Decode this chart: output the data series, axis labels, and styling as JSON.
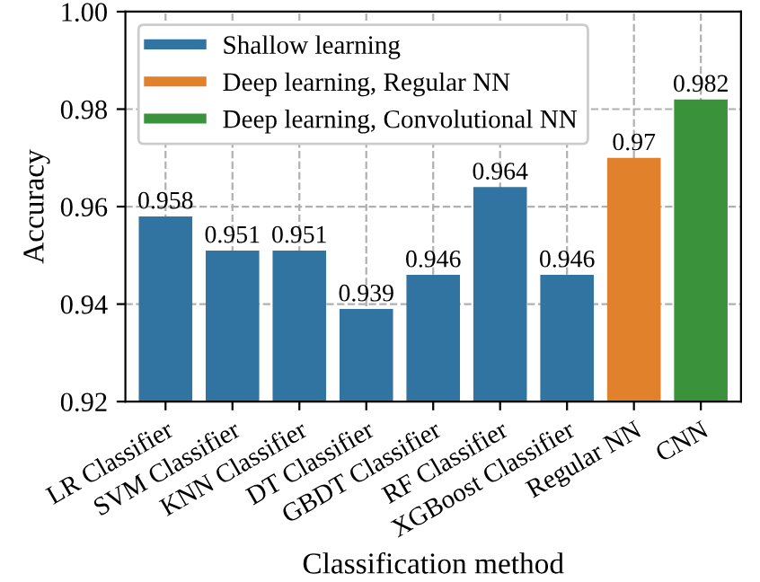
{
  "chart_data": {
    "type": "bar",
    "xlabel": "Classification method",
    "ylabel": "Accuracy",
    "categories": [
      "LR Classifier",
      "SVM Classifier",
      "KNN Classifier",
      "DT Classifier",
      "GBDT Classifier",
      "RF Classifier",
      "XGBoost Classifier",
      "Regular NN",
      "CNN"
    ],
    "series": [
      {
        "name": "Shallow learning",
        "color": "#3274a1",
        "values": [
          0.958,
          0.951,
          0.951,
          0.939,
          0.946,
          0.964,
          0.946,
          null,
          null
        ]
      },
      {
        "name": "Deep learning, Regular NN",
        "color": "#e1812c",
        "values": [
          null,
          null,
          null,
          null,
          null,
          null,
          null,
          0.97,
          null
        ]
      },
      {
        "name": "Deep learning, Convolutional NN",
        "color": "#3a923a",
        "values": [
          null,
          null,
          null,
          null,
          null,
          null,
          null,
          null,
          0.982
        ]
      }
    ],
    "ylim": [
      0.92,
      1.0
    ],
    "yticks": [
      0.92,
      0.94,
      0.96,
      0.98,
      {
        "value": 1.0,
        "label": "1.00"
      }
    ],
    "grid": true,
    "legend": "top left",
    "data_labels": true
  }
}
